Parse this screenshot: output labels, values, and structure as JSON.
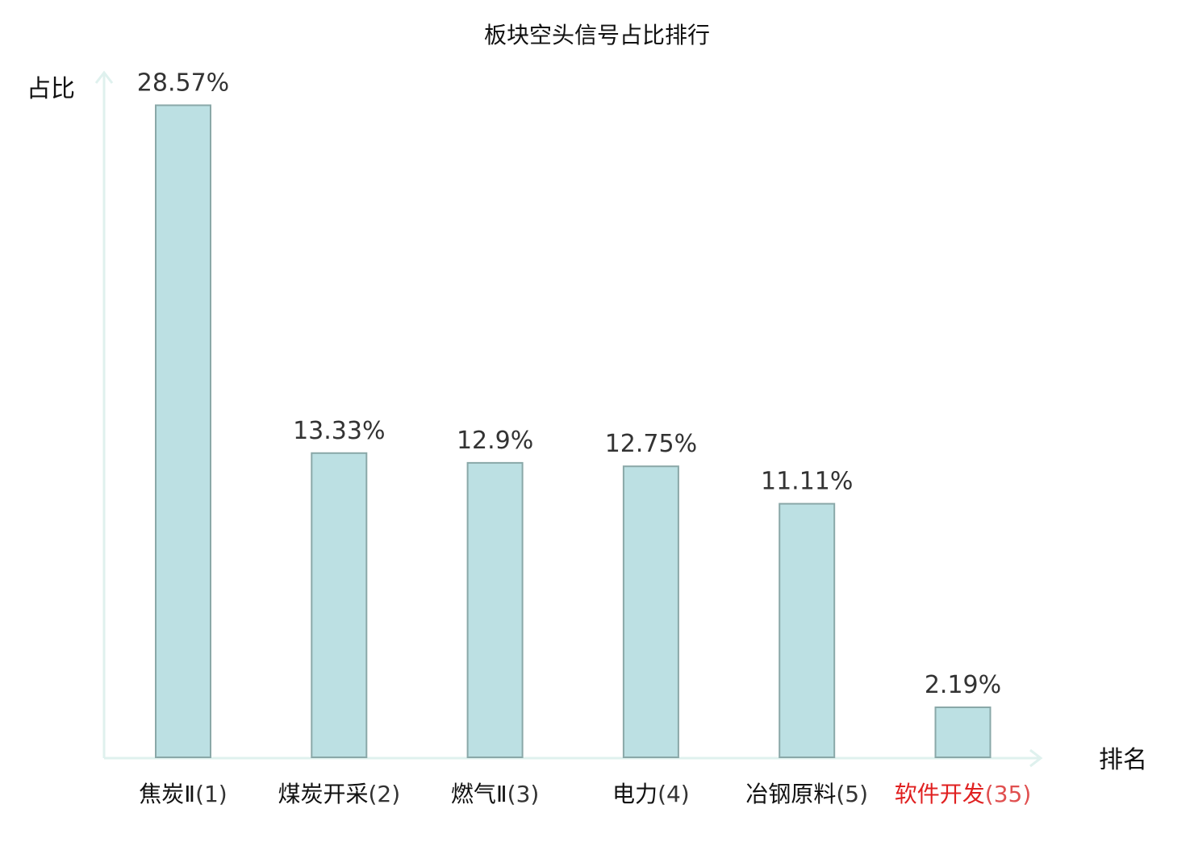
{
  "chart_data": {
    "type": "bar",
    "title": "板块空头信号占比排行",
    "ylabel": "占比",
    "xlabel": "排名",
    "ylim": [
      0,
      30
    ],
    "grid": false,
    "colors": {
      "bar_fill": "#bce0e3",
      "bar_stroke": "#8aa8a8",
      "axis": "#dff1ee",
      "text": "#111111",
      "value_label": "#333333",
      "highlight": "#e02020",
      "highlight_rank": "#e05050"
    },
    "categories": [
      {
        "name": "焦炭Ⅱ",
        "rank": "(1)",
        "value": 28.57,
        "label": "28.57%",
        "highlight": false
      },
      {
        "name": "煤炭开采",
        "rank": "(2)",
        "value": 13.33,
        "label": "13.33%",
        "highlight": false
      },
      {
        "name": "燃气Ⅱ",
        "rank": "(3)",
        "value": 12.9,
        "label": "12.9%",
        "highlight": false
      },
      {
        "name": "电力",
        "rank": "(4)",
        "value": 12.75,
        "label": "12.75%",
        "highlight": false
      },
      {
        "name": "冶钢原料",
        "rank": "(5)",
        "value": 11.11,
        "label": "11.11%",
        "highlight": false
      },
      {
        "name": "软件开发",
        "rank": "(35)",
        "value": 2.19,
        "label": "2.19%",
        "highlight": true
      }
    ]
  }
}
